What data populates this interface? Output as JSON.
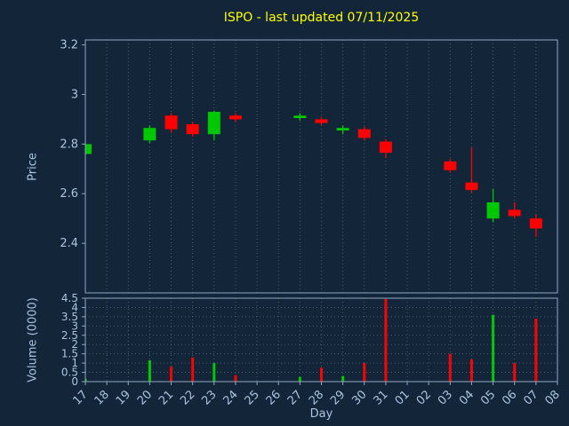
{
  "colors": {
    "background": "#132639",
    "title": "#ffff00",
    "axis_text": "#a9c4dd",
    "spine": "#8fa8bf",
    "grid": "#8aa0b4",
    "up": "#00c800",
    "down": "#ff0000"
  },
  "chart_data": [
    {
      "type": "candlestick",
      "title": "ISPO - last updated 07/11/2025",
      "xlabel": "Day",
      "ylabel": "Price",
      "ylim": [
        2.2,
        3.22
      ],
      "grid": "vertical-dotted",
      "legend": "none",
      "yticks": [
        {
          "value": 3.2,
          "label": "3.2"
        },
        {
          "value": 3.0,
          "label": "3"
        },
        {
          "value": 2.8,
          "label": "2.8"
        },
        {
          "value": 2.6,
          "label": "2.6"
        },
        {
          "value": 2.4,
          "label": "2.4"
        }
      ],
      "categories": [
        "17",
        "18",
        "19",
        "20",
        "21",
        "22",
        "23",
        "24",
        "25",
        "26",
        "27",
        "28",
        "29",
        "30",
        "31",
        "01",
        "02",
        "03",
        "04",
        "05",
        "06",
        "07",
        "08"
      ],
      "candles": [
        {
          "day": "17",
          "open": 2.76,
          "high": 2.805,
          "low": 2.755,
          "close": 2.8
        },
        {
          "day": "20",
          "open": 2.815,
          "high": 2.875,
          "low": 2.805,
          "close": 2.865
        },
        {
          "day": "21",
          "open": 2.915,
          "high": 2.925,
          "low": 2.845,
          "close": 2.86
        },
        {
          "day": "22",
          "open": 2.88,
          "high": 2.89,
          "low": 2.83,
          "close": 2.84
        },
        {
          "day": "23",
          "open": 2.84,
          "high": 2.935,
          "low": 2.815,
          "close": 2.93
        },
        {
          "day": "24",
          "open": 2.915,
          "high": 2.925,
          "low": 2.89,
          "close": 2.9
        },
        {
          "day": "27",
          "open": 2.905,
          "high": 2.925,
          "low": 2.895,
          "close": 2.915
        },
        {
          "day": "28",
          "open": 2.9,
          "high": 2.91,
          "low": 2.875,
          "close": 2.885
        },
        {
          "day": "29",
          "open": 2.855,
          "high": 2.875,
          "low": 2.84,
          "close": 2.865
        },
        {
          "day": "30",
          "open": 2.86,
          "high": 2.87,
          "low": 2.815,
          "close": 2.825
        },
        {
          "day": "31",
          "open": 2.81,
          "high": 2.82,
          "low": 2.745,
          "close": 2.765
        },
        {
          "day": "03",
          "open": 2.73,
          "high": 2.74,
          "low": 2.685,
          "close": 2.695
        },
        {
          "day": "04",
          "open": 2.645,
          "high": 2.785,
          "low": 2.605,
          "close": 2.615
        },
        {
          "day": "05",
          "open": 2.5,
          "high": 2.62,
          "low": 2.485,
          "close": 2.565
        },
        {
          "day": "06",
          "open": 2.535,
          "high": 2.565,
          "low": 2.5,
          "close": 2.51
        },
        {
          "day": "07",
          "open": 2.5,
          "high": 2.515,
          "low": 2.425,
          "close": 2.46
        }
      ]
    },
    {
      "type": "bar",
      "ylabel": "Volume (0000)",
      "ylim": [
        0,
        4.5
      ],
      "grid": "dotted",
      "yticks": [
        {
          "value": 0,
          "label": "0"
        },
        {
          "value": 0.5,
          "label": "0.5"
        },
        {
          "value": 1,
          "label": "1"
        },
        {
          "value": 1.5,
          "label": "1.5"
        },
        {
          "value": 2,
          "label": "2"
        },
        {
          "value": 2.5,
          "label": "2.5"
        },
        {
          "value": 3,
          "label": "3"
        },
        {
          "value": 3.5,
          "label": "3.5"
        },
        {
          "value": 4,
          "label": "4"
        },
        {
          "value": 4.5,
          "label": "4.5"
        }
      ],
      "bars": [
        {
          "day": "17",
          "value": 0.15,
          "direction": "up"
        },
        {
          "day": "20",
          "value": 1.15,
          "direction": "up"
        },
        {
          "day": "21",
          "value": 0.8,
          "direction": "down"
        },
        {
          "day": "22",
          "value": 1.3,
          "direction": "down"
        },
        {
          "day": "23",
          "value": 1.0,
          "direction": "up"
        },
        {
          "day": "24",
          "value": 0.35,
          "direction": "down"
        },
        {
          "day": "27",
          "value": 0.25,
          "direction": "up"
        },
        {
          "day": "28",
          "value": 0.75,
          "direction": "down"
        },
        {
          "day": "29",
          "value": 0.3,
          "direction": "up"
        },
        {
          "day": "30",
          "value": 1.0,
          "direction": "down"
        },
        {
          "day": "31",
          "value": 4.45,
          "direction": "down"
        },
        {
          "day": "03",
          "value": 1.5,
          "direction": "down"
        },
        {
          "day": "04",
          "value": 1.2,
          "direction": "down"
        },
        {
          "day": "05",
          "value": 3.6,
          "direction": "up"
        },
        {
          "day": "06",
          "value": 1.0,
          "direction": "down"
        },
        {
          "day": "07",
          "value": 3.4,
          "direction": "down"
        }
      ]
    }
  ]
}
